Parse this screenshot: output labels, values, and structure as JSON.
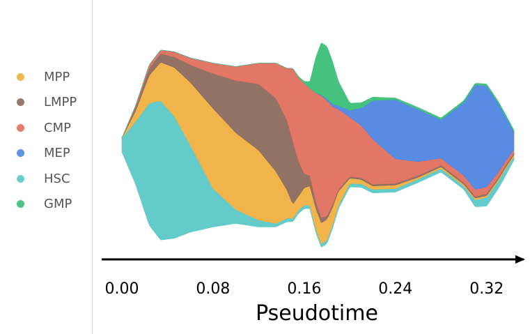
{
  "chart_data": {
    "type": "area",
    "style": "streamgraph",
    "xlabel": "Pseudotime",
    "xlim": [
      0.0,
      0.344
    ],
    "xticks": [
      0.0,
      0.08,
      0.16,
      0.24,
      0.32
    ],
    "xtick_labels": [
      "0.00",
      "0.08",
      "0.16",
      "0.24",
      "0.32"
    ],
    "grid": false,
    "legend_position": "left",
    "stack_order": [
      "HSC",
      "MPP",
      "LMPP",
      "CMP",
      "MEP",
      "GMP"
    ],
    "series": [
      {
        "name": "HSC",
        "color": "#5cc8c8",
        "x": [
          0.0,
          0.012,
          0.024,
          0.034,
          0.046,
          0.06,
          0.08,
          0.1,
          0.12,
          0.135,
          0.15,
          0.165,
          0.18,
          0.2,
          0.22,
          0.24,
          0.26,
          0.28,
          0.3,
          0.31,
          0.32,
          0.335,
          0.344
        ],
        "values": [
          0.008,
          0.036,
          0.07,
          0.08,
          0.07,
          0.05,
          0.022,
          0.008,
          0.004,
          0.002,
          0.002,
          0.002,
          0.002,
          0.002,
          0.002,
          0.002,
          0.002,
          0.002,
          0.002,
          0.004,
          0.005,
          0.004,
          0.002
        ]
      },
      {
        "name": "MPP",
        "color": "#f0b040",
        "x": [
          0.0,
          0.012,
          0.024,
          0.034,
          0.046,
          0.06,
          0.08,
          0.1,
          0.12,
          0.135,
          0.145,
          0.15,
          0.155,
          0.16,
          0.17,
          0.18,
          0.19,
          0.2,
          0.22,
          0.24,
          0.26,
          0.28,
          0.3,
          0.32,
          0.344
        ],
        "values": [
          0.0,
          0.006,
          0.016,
          0.022,
          0.028,
          0.036,
          0.046,
          0.044,
          0.04,
          0.03,
          0.016,
          0.008,
          0.008,
          0.01,
          0.012,
          0.012,
          0.008,
          0.003,
          0.002,
          0.002,
          0.001,
          0.001,
          0.001,
          0.001,
          0.001
        ]
      },
      {
        "name": "LMPP",
        "color": "#8b6a5c",
        "x": [
          0.0,
          0.012,
          0.024,
          0.034,
          0.046,
          0.06,
          0.08,
          0.1,
          0.12,
          0.135,
          0.145,
          0.15,
          0.155,
          0.16,
          0.17,
          0.18,
          0.19,
          0.2,
          0.22,
          0.24,
          0.28,
          0.344
        ],
        "values": [
          0.0,
          0.002,
          0.004,
          0.005,
          0.006,
          0.01,
          0.02,
          0.03,
          0.038,
          0.042,
          0.04,
          0.036,
          0.02,
          0.008,
          0.004,
          0.002,
          0.001,
          0.001,
          0.001,
          0.001,
          0.001,
          0.001
        ]
      },
      {
        "name": "CMP",
        "color": "#e07060",
        "x": [
          0.0,
          0.012,
          0.024,
          0.034,
          0.046,
          0.06,
          0.08,
          0.1,
          0.12,
          0.135,
          0.145,
          0.15,
          0.155,
          0.16,
          0.165,
          0.17,
          0.175,
          0.18,
          0.19,
          0.2,
          0.21,
          0.22,
          0.23,
          0.24,
          0.26,
          0.28,
          0.3,
          0.32,
          0.344
        ],
        "values": [
          0.0,
          0.001,
          0.002,
          0.002,
          0.003,
          0.004,
          0.006,
          0.008,
          0.012,
          0.02,
          0.03,
          0.042,
          0.048,
          0.052,
          0.05,
          0.062,
          0.07,
          0.066,
          0.046,
          0.034,
          0.03,
          0.026,
          0.02,
          0.014,
          0.008,
          0.004,
          0.004,
          0.004,
          0.002
        ]
      },
      {
        "name": "MEP",
        "color": "#4f86e0",
        "x": [
          0.0,
          0.15,
          0.16,
          0.17,
          0.18,
          0.19,
          0.2,
          0.21,
          0.22,
          0.24,
          0.26,
          0.28,
          0.3,
          0.31,
          0.32,
          0.33,
          0.344
        ],
        "values": [
          0.0,
          0.0,
          0.0,
          0.0,
          0.001,
          0.002,
          0.004,
          0.01,
          0.022,
          0.034,
          0.03,
          0.022,
          0.042,
          0.06,
          0.058,
          0.04,
          0.01
        ]
      },
      {
        "name": "GMP",
        "color": "#3cbf78",
        "x": [
          0.0,
          0.15,
          0.16,
          0.165,
          0.17,
          0.175,
          0.18,
          0.185,
          0.19,
          0.2,
          0.22,
          0.24,
          0.28,
          0.344
        ],
        "values": [
          0.0,
          0.0,
          0.001,
          0.004,
          0.02,
          0.03,
          0.03,
          0.024,
          0.014,
          0.004,
          0.002,
          0.001,
          0.001,
          0.001
        ]
      }
    ]
  }
}
